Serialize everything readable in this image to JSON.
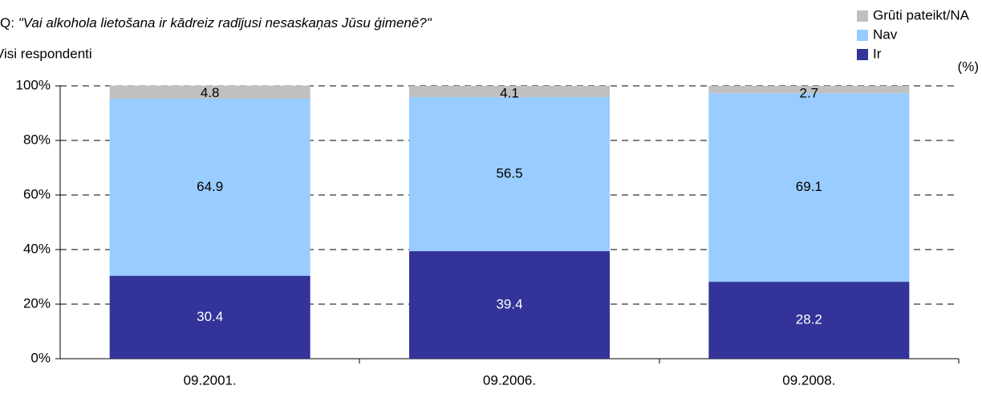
{
  "chart_data": {
    "type": "stacked_bar",
    "question_prefix": "Q:",
    "question": "\"Vai alkohola lietošana ir kādreiz radījusi nesaskaņas Jūsu ģimenē?\"",
    "subtitle": "Visi respondenti",
    "unit": "(%)",
    "categories": [
      "09.2001.",
      "09.2006.",
      "09.2008."
    ],
    "series": [
      {
        "name": "Ir",
        "color": "#333399",
        "values": [
          30.4,
          39.4,
          28.2
        ]
      },
      {
        "name": "Nav",
        "color": "#99ccff",
        "values": [
          64.9,
          56.5,
          69.1
        ]
      },
      {
        "name": "Grūti pateikt/NA",
        "color": "#c0c0c0",
        "values": [
          4.8,
          4.1,
          2.7
        ]
      }
    ],
    "ylim": [
      0,
      100
    ],
    "yticks": [
      {
        "value": 0,
        "label": "0%"
      },
      {
        "value": 20,
        "label": "20%"
      },
      {
        "value": 40,
        "label": "40%"
      },
      {
        "value": 60,
        "label": "60%"
      },
      {
        "value": 80,
        "label": "80%"
      },
      {
        "value": 100,
        "label": "100%"
      }
    ],
    "grid": true,
    "legend": "top-right"
  }
}
